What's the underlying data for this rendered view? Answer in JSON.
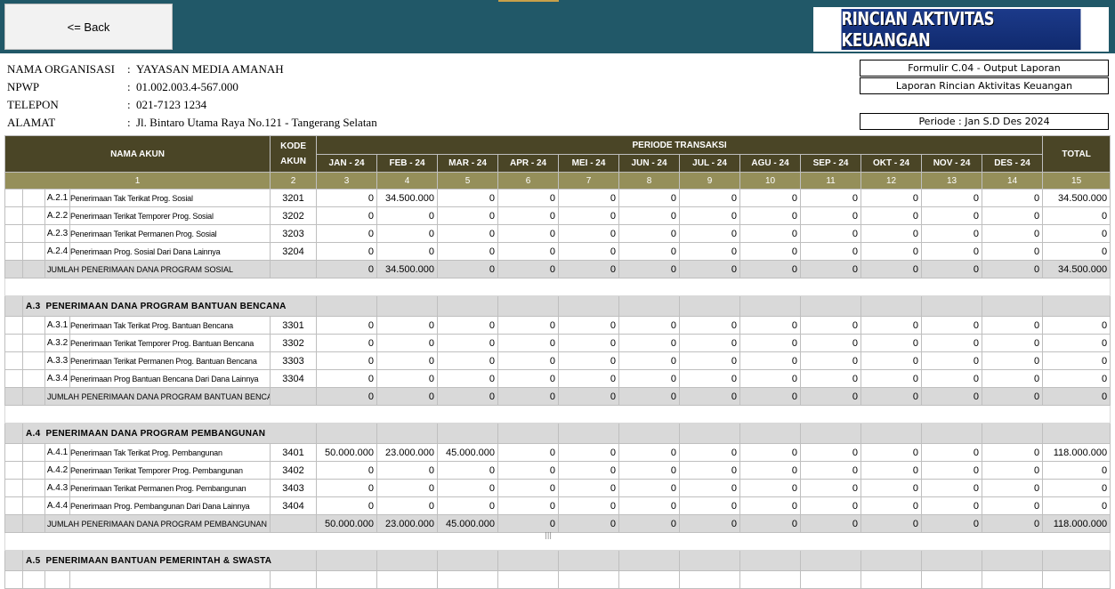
{
  "header": {
    "back_label": "<= Back",
    "title": "RINCIAN AKTIVITAS KEUANGAN"
  },
  "org": [
    {
      "label": "NAMA ORGANISASI",
      "value": "YAYASAN MEDIA AMANAH"
    },
    {
      "label": "NPWP",
      "value": "01.002.003.4-567.000"
    },
    {
      "label": "TELEPON",
      "value": "021-7123 1234"
    },
    {
      "label": "ALAMAT",
      "value": "Jl. Bintaro Utama Raya No.121 - Tangerang Selatan"
    }
  ],
  "form_info": {
    "formulir": "Formulir C.04 - Output Laporan",
    "laporan": "Laporan Rincian Aktivitas Keuangan",
    "periode": "Periode : Jan S.D Des 2024"
  },
  "table": {
    "col_nama": "NAMA AKUN",
    "col_kode": "KODE AKUN",
    "col_periode": "PERIODE TRANSAKSI",
    "col_total": "TOTAL",
    "months": [
      "JAN - 24",
      "FEB - 24",
      "MAR - 24",
      "APR - 24",
      "MEI - 24",
      "JUN - 24",
      "JUL - 24",
      "AGU - 24",
      "SEP - 24",
      "OKT - 24",
      "NOV - 24",
      "DES - 24"
    ],
    "col_numbers": [
      "1",
      "2",
      "3",
      "4",
      "5",
      "6",
      "7",
      "8",
      "9",
      "10",
      "11",
      "12",
      "13",
      "14",
      "15"
    ],
    "rows": [
      {
        "type": "item",
        "idx": "A.2.1",
        "name": "Penerimaan Tak Terikat Prog. Sosial",
        "code": "3201",
        "values": [
          "0",
          "34.500.000",
          "0",
          "0",
          "0",
          "0",
          "0",
          "0",
          "0",
          "0",
          "0",
          "0"
        ],
        "total": "34.500.000"
      },
      {
        "type": "item",
        "idx": "A.2.2",
        "name": "Penerimaan Terikat Temporer Prog. Sosial",
        "code": "3202",
        "values": [
          "0",
          "0",
          "0",
          "0",
          "0",
          "0",
          "0",
          "0",
          "0",
          "0",
          "0",
          "0"
        ],
        "total": "0"
      },
      {
        "type": "item",
        "idx": "A.2.3",
        "name": "Penerimaan Terikat Permanen Prog. Sosial",
        "code": "3203",
        "values": [
          "0",
          "0",
          "0",
          "0",
          "0",
          "0",
          "0",
          "0",
          "0",
          "0",
          "0",
          "0"
        ],
        "total": "0"
      },
      {
        "type": "item",
        "idx": "A.2.4",
        "name": "Penerimaan Prog. Sosial Dari Dana Lainnya",
        "code": "3204",
        "values": [
          "0",
          "0",
          "0",
          "0",
          "0",
          "0",
          "0",
          "0",
          "0",
          "0",
          "0",
          "0"
        ],
        "total": "0"
      },
      {
        "type": "sum",
        "name": "JUMLAH PENERIMAAN DANA PROGRAM SOSIAL",
        "values": [
          "0",
          "34.500.000",
          "0",
          "0",
          "0",
          "0",
          "0",
          "0",
          "0",
          "0",
          "0",
          "0"
        ],
        "total": "34.500.000"
      },
      {
        "type": "blank"
      },
      {
        "type": "section",
        "idx": "A.3",
        "name": "PENERIMAAN DANA PROGRAM BANTUAN BENCANA"
      },
      {
        "type": "item",
        "idx": "A.3.1",
        "name": "Penerimaan Tak Terikat Prog. Bantuan Bencana",
        "code": "3301",
        "values": [
          "0",
          "0",
          "0",
          "0",
          "0",
          "0",
          "0",
          "0",
          "0",
          "0",
          "0",
          "0"
        ],
        "total": "0"
      },
      {
        "type": "item",
        "idx": "A.3.2",
        "name": "Penerimaan Terikat Temporer Prog. Bantuan Bencana",
        "code": "3302",
        "values": [
          "0",
          "0",
          "0",
          "0",
          "0",
          "0",
          "0",
          "0",
          "0",
          "0",
          "0",
          "0"
        ],
        "total": "0"
      },
      {
        "type": "item",
        "idx": "A.3.3",
        "name": "Penerimaan Terikat Permanen Prog. Bantuan Bencana",
        "code": "3303",
        "values": [
          "0",
          "0",
          "0",
          "0",
          "0",
          "0",
          "0",
          "0",
          "0",
          "0",
          "0",
          "0"
        ],
        "total": "0"
      },
      {
        "type": "item",
        "idx": "A.3.4",
        "name": "Penerimaan Prog Bantuan Bencana Dari Dana Lainnya",
        "code": "3304",
        "values": [
          "0",
          "0",
          "0",
          "0",
          "0",
          "0",
          "0",
          "0",
          "0",
          "0",
          "0",
          "0"
        ],
        "total": "0"
      },
      {
        "type": "sum",
        "name": "JUMLAH PENERIMAAN DANA PROGRAM BANTUAN BENCANA",
        "values": [
          "0",
          "0",
          "0",
          "0",
          "0",
          "0",
          "0",
          "0",
          "0",
          "0",
          "0",
          "0"
        ],
        "total": "0"
      },
      {
        "type": "blank"
      },
      {
        "type": "section",
        "idx": "A.4",
        "name": "PENERIMAAN DANA PROGRAM PEMBANGUNAN"
      },
      {
        "type": "item",
        "idx": "A.4.1",
        "name": "Penerimaan Tak Terikat Prog. Pembangunan",
        "code": "3401",
        "values": [
          "50.000.000",
          "23.000.000",
          "45.000.000",
          "0",
          "0",
          "0",
          "0",
          "0",
          "0",
          "0",
          "0",
          "0"
        ],
        "total": "118.000.000"
      },
      {
        "type": "item",
        "idx": "A.4.2",
        "name": "Penerimaan Terikat Temporer Prog. Pembangunan",
        "code": "3402",
        "values": [
          "0",
          "0",
          "0",
          "0",
          "0",
          "0",
          "0",
          "0",
          "0",
          "0",
          "0",
          "0"
        ],
        "total": "0"
      },
      {
        "type": "item",
        "idx": "A.4.3",
        "name": "Penerimaan Terikat Permanen Prog. Pembangunan",
        "code": "3403",
        "values": [
          "0",
          "0",
          "0",
          "0",
          "0",
          "0",
          "0",
          "0",
          "0",
          "0",
          "0",
          "0"
        ],
        "total": "0"
      },
      {
        "type": "item",
        "idx": "A.4.4",
        "name": "Penerimaan Prog. Pembangunan Dari Dana Lainnya",
        "code": "3404",
        "values": [
          "0",
          "0",
          "0",
          "0",
          "0",
          "0",
          "0",
          "0",
          "0",
          "0",
          "0",
          "0"
        ],
        "total": "0"
      },
      {
        "type": "sum",
        "name": "JUMLAH PENERIMAAN DANA PROGRAM PEMBANGUNAN",
        "values": [
          "50.000.000",
          "23.000.000",
          "45.000.000",
          "0",
          "0",
          "0",
          "0",
          "0",
          "0",
          "0",
          "0",
          "0"
        ],
        "total": "118.000.000"
      },
      {
        "type": "blank"
      },
      {
        "type": "section",
        "idx": "A.5",
        "name": "PENERIMAAN BANTUAN PEMERINTAH & SWASTA"
      },
      {
        "type": "item",
        "idx": "",
        "name": "",
        "code": "",
        "values": [
          "",
          "",
          "",
          "",
          "",
          "",
          "",
          "",
          "",
          "",
          "",
          ""
        ],
        "total": ""
      }
    ]
  }
}
